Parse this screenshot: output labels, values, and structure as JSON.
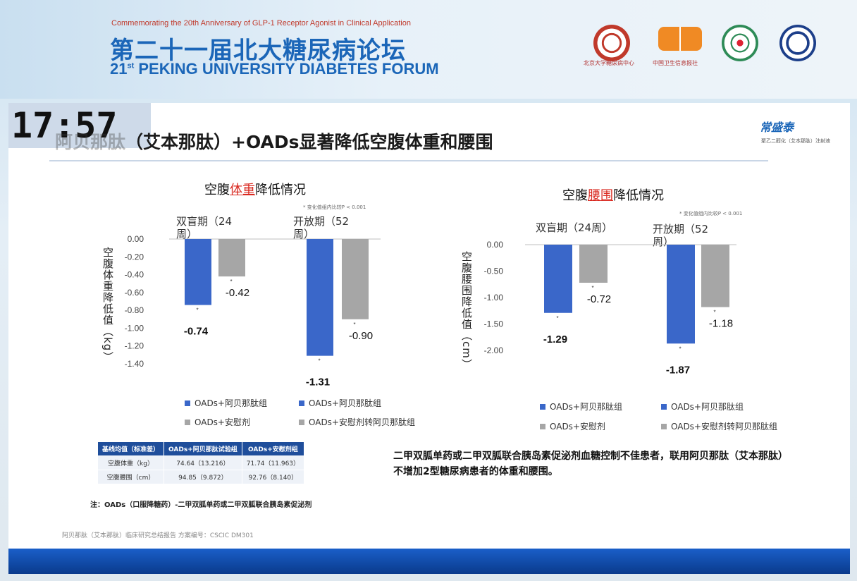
{
  "header": {
    "subtitle_en": "Commemorating the 20th Anniversary of GLP-1 Receptor Agonist in Clinical Application",
    "title_cn": "第二十一届北大糖尿病论坛",
    "title_en_prefix": "21",
    "title_en_sup": "st",
    "title_en_rest": " PEKING UNIVERSITY DIABETES FORUM",
    "logos": [
      "peking-university-logo",
      "china-health-promotion-logo",
      "medical-association-logo",
      "diabetes-society-logo"
    ],
    "logo_caption_1": "北京大学糖尿病中心",
    "logo_caption_2": "中国卫生信息报社"
  },
  "clock": "17:57",
  "slide": {
    "title_faint": "阿贝那肽",
    "title_main": "（艾本那肽）+OADs显著降低空腹体重和腰围",
    "brand_name": "常盛泰",
    "brand_sub": "聚乙二醇化（艾本那肽）注射液"
  },
  "charts": [
    {
      "title_pre": "空腹",
      "title_hl": "体重",
      "title_post": "降低情况",
      "note": "* 变化值组内比较P < 0.001",
      "ylabel": "空腹体重降低值（kg）",
      "phases": [
        "双盲期（24周）",
        "开放期（52周）"
      ],
      "yticks": [
        "0.00",
        "-0.20",
        "-0.40",
        "-0.60",
        "-0.80",
        "-1.00",
        "-1.20",
        "-1.40"
      ],
      "data_labels": [
        "-0.74",
        "-0.42",
        "-1.31",
        "-0.90"
      ],
      "legend": [
        "OADs+阿贝那肽组",
        "OADs+阿贝那肽组",
        "OADs+安慰剂",
        "OADs+安慰剂转阿贝那肽组"
      ]
    },
    {
      "title_pre": "空腹",
      "title_hl": "腰围",
      "title_post": "降低情况",
      "note": "* 变化值组内比较P < 0.001",
      "ylabel": "空腹腰围降低值（cm）",
      "phases": [
        "双盲期（24周）",
        "开放期（52周）"
      ],
      "yticks": [
        "0.00",
        "-0.50",
        "-1.00",
        "-1.50",
        "-2.00"
      ],
      "data_labels": [
        "-1.29",
        "-0.72",
        "-1.87",
        "-1.18"
      ],
      "legend": [
        "OADs+阿贝那肽组",
        "OADs+阿贝那肽组",
        "OADs+安慰剂",
        "OADs+安慰剂转阿贝那肽组"
      ]
    }
  ],
  "chart_data": [
    {
      "type": "bar",
      "title": "空腹体重降低情况",
      "ylabel": "空腹体重降低值（kg）",
      "categories": [
        "双盲期（24周）",
        "开放期（52周）"
      ],
      "series": [
        {
          "name": "OADs+阿贝那肽组",
          "values": [
            -0.74,
            -1.31
          ]
        },
        {
          "name": "OADs+安慰剂 / OADs+安慰剂转阿贝那肽组",
          "values": [
            -0.42,
            -0.9
          ]
        }
      ],
      "ylim": [
        -1.4,
        0
      ],
      "colors": [
        "#3a67c9",
        "#a6a6a6"
      ]
    },
    {
      "type": "bar",
      "title": "空腹腰围降低情况",
      "ylabel": "空腹腰围降低值（cm）",
      "categories": [
        "双盲期（24周）",
        "开放期（52周）"
      ],
      "series": [
        {
          "name": "OADs+阿贝那肽组",
          "values": [
            -1.29,
            -1.87
          ]
        },
        {
          "name": "OADs+安慰剂 / OADs+安慰剂转阿贝那肽组",
          "values": [
            -0.72,
            -1.18
          ]
        }
      ],
      "ylim": [
        -2.0,
        0
      ],
      "colors": [
        "#3a67c9",
        "#a6a6a6"
      ]
    }
  ],
  "baseline_table": {
    "headers": [
      "基线均值（标准差）",
      "OADs+阿贝那肽试验组",
      "OADs+安慰剂组"
    ],
    "rows": [
      [
        "空腹体重（kg）",
        "74.64（13.216）",
        "71.74（11.963）"
      ],
      [
        "空腹腰围（cm）",
        "94.85（9.872）",
        "92.76（8.140）"
      ]
    ]
  },
  "footnote": "注：OADs（口服降糖药）-二甲双胍单药或二甲双胍联合胰岛素促泌剂",
  "conclusion": "二甲双胍单药或二甲双胍联合胰岛素促泌剂血糖控制不佳患者，联用阿贝那肽（艾本那肽）不增加2型糖尿病患者的体重和腰围。",
  "source": "阿贝那肽（艾本那肽）临床研究总结报告 方案编号：CSCIC DM301"
}
